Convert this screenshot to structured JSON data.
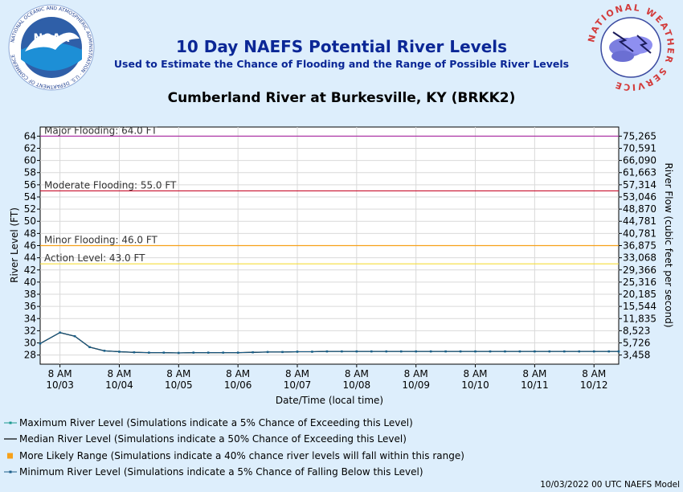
{
  "header": {
    "title": "10 Day NAEFS Potential River Levels",
    "subtitle": "Used to Estimate the Chance of Flooding and the Range of Possible River Levels",
    "site": "Cumberland River at Burkesville, KY (BRKK2)",
    "noaa_logo_text": "NOAA",
    "noaa_ring_text": "NATIONAL OCEANIC AND ATMOSPHERIC ADMINISTRATION · U.S. DEPARTMENT OF COMMERCE",
    "nws_ring_text": "NATIONAL WEATHER SERVICE"
  },
  "chart_data": {
    "type": "line",
    "ylabel": "River Level (FT)",
    "y2label": "River Flow (cubic feet per second)",
    "xlabel": "Date/Time (local time)",
    "ylim": [
      26.5,
      65.5
    ],
    "yticks": [
      28,
      30,
      32,
      34,
      36,
      38,
      40,
      42,
      44,
      46,
      48,
      50,
      52,
      54,
      56,
      58,
      60,
      62,
      64
    ],
    "y2ticks": [
      "3,458",
      "5,726",
      "8,523",
      "11,835",
      "15,544",
      "20,185",
      "25,316",
      "29,366",
      "33,068",
      "36,875",
      "40,781",
      "44,781",
      "48,870",
      "53,046",
      "57,314",
      "61,663",
      "66,090",
      "70,591",
      "75,265"
    ],
    "x_start_hours": -8,
    "x_end_hours": 226,
    "xticks": [
      {
        "top": "8 AM",
        "bottom": "10/03"
      },
      {
        "top": "8 AM",
        "bottom": "10/04"
      },
      {
        "top": "8 AM",
        "bottom": "10/05"
      },
      {
        "top": "8 AM",
        "bottom": "10/06"
      },
      {
        "top": "8 AM",
        "bottom": "10/07"
      },
      {
        "top": "8 AM",
        "bottom": "10/08"
      },
      {
        "top": "8 AM",
        "bottom": "10/09"
      },
      {
        "top": "8 AM",
        "bottom": "10/10"
      },
      {
        "top": "8 AM",
        "bottom": "10/11"
      },
      {
        "top": "8 AM",
        "bottom": "10/12"
      }
    ],
    "thresholds": [
      {
        "label": "Major Flooding: 64.0 FT",
        "value": 64.0,
        "color": "#b03aa8"
      },
      {
        "label": "Moderate Flooding: 55.0 FT",
        "value": 55.0,
        "color": "#c8102e"
      },
      {
        "label": "Minor Flooding: 46.0 FT",
        "value": 46.0,
        "color": "#f7a11a"
      },
      {
        "label": "Action Level: 43.0 FT",
        "value": 43.0,
        "color": "#f5dd3b"
      }
    ],
    "series_hours": [
      -8,
      0,
      6,
      12,
      18,
      24,
      30,
      36,
      42,
      48,
      54,
      60,
      66,
      72,
      78,
      84,
      90,
      96,
      102,
      108,
      114,
      120,
      126,
      132,
      138,
      144,
      150,
      156,
      162,
      168,
      174,
      180,
      186,
      192,
      198,
      204,
      210,
      216,
      222,
      226
    ],
    "series": [
      {
        "name": "Maximum River Level",
        "color": "#1a9a8f",
        "values": [
          29.9,
          31.7,
          31.1,
          29.3,
          28.7,
          28.55,
          28.45,
          28.4,
          28.4,
          28.35,
          28.4,
          28.4,
          28.4,
          28.4,
          28.45,
          28.5,
          28.5,
          28.55,
          28.55,
          28.6,
          28.6,
          28.6,
          28.6,
          28.6,
          28.6,
          28.6,
          28.6,
          28.6,
          28.6,
          28.6,
          28.6,
          28.6,
          28.6,
          28.6,
          28.6,
          28.6,
          28.6,
          28.6,
          28.6,
          28.6
        ]
      },
      {
        "name": "Median River Level",
        "color": "#000000",
        "values": [
          29.9,
          31.7,
          31.1,
          29.3,
          28.7,
          28.55,
          28.45,
          28.4,
          28.4,
          28.35,
          28.4,
          28.4,
          28.4,
          28.4,
          28.45,
          28.5,
          28.5,
          28.55,
          28.55,
          28.6,
          28.6,
          28.6,
          28.6,
          28.6,
          28.6,
          28.6,
          28.6,
          28.6,
          28.6,
          28.6,
          28.6,
          28.6,
          28.6,
          28.6,
          28.6,
          28.6,
          28.6,
          28.6,
          28.6,
          28.6
        ]
      },
      {
        "name": "Minimum River Level",
        "color": "#1b5e8a",
        "values": [
          29.9,
          31.7,
          31.1,
          29.3,
          28.7,
          28.55,
          28.45,
          28.4,
          28.4,
          28.35,
          28.4,
          28.4,
          28.4,
          28.4,
          28.45,
          28.5,
          28.5,
          28.55,
          28.55,
          28.6,
          28.6,
          28.6,
          28.6,
          28.6,
          28.6,
          28.6,
          28.6,
          28.6,
          28.6,
          28.6,
          28.6,
          28.6,
          28.6,
          28.6,
          28.6,
          28.6,
          28.6,
          28.6,
          28.6,
          28.6
        ]
      }
    ],
    "grid": true
  },
  "legend": [
    {
      "label": "Maximum River Level (Simulations indicate a 5% Chance of Exceeding this Level)",
      "color": "#1a9a8f",
      "kind": "line-marker"
    },
    {
      "label": "Median River Level (Simulations indicate a 50% Chance of Exceeding this Level)",
      "color": "#000000",
      "kind": "line"
    },
    {
      "label": "More Likely Range (Simulations indicate a 40% chance river levels will fall within this range)",
      "color": "#f7a11a",
      "kind": "square"
    },
    {
      "label": "Minimum River Level (Simulations indicate a 5% Chance of Falling Below this Level)",
      "color": "#1b5e8a",
      "kind": "line-marker"
    }
  ],
  "footer": "10/03/2022 00 UTC NAEFS Model"
}
